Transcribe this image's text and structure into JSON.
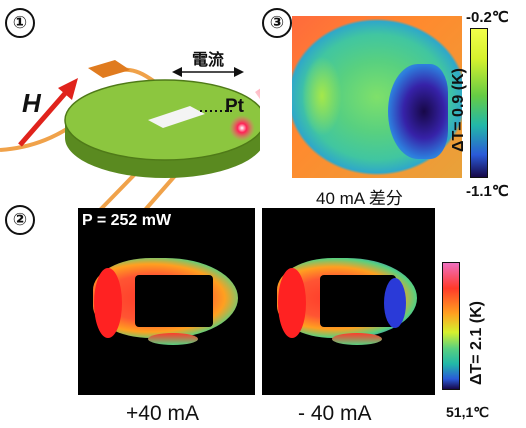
{
  "panel_markers": [
    "①",
    "③",
    "②"
  ],
  "schematic": {
    "field_label": "H",
    "current_label": "電流",
    "pt_label": "Pt"
  },
  "panel3": {
    "caption": "40 mA 差分",
    "scale_top": "-0.2℃",
    "scale_bottom": "-1.1℃",
    "scale_label": "ΔT= 0.9 (K)"
  },
  "panel2": {
    "power_label": "P = 252 mW",
    "left_caption": "+40 mA",
    "right_caption": "- 40 mA",
    "scale_bottom": "51,1℃",
    "scale_label": "ΔT= 2.1 (K)"
  },
  "colors": {
    "green_disk": "#8cc63f",
    "arrow_red": "#e0231c",
    "wire_orange": "#f0a24a"
  }
}
